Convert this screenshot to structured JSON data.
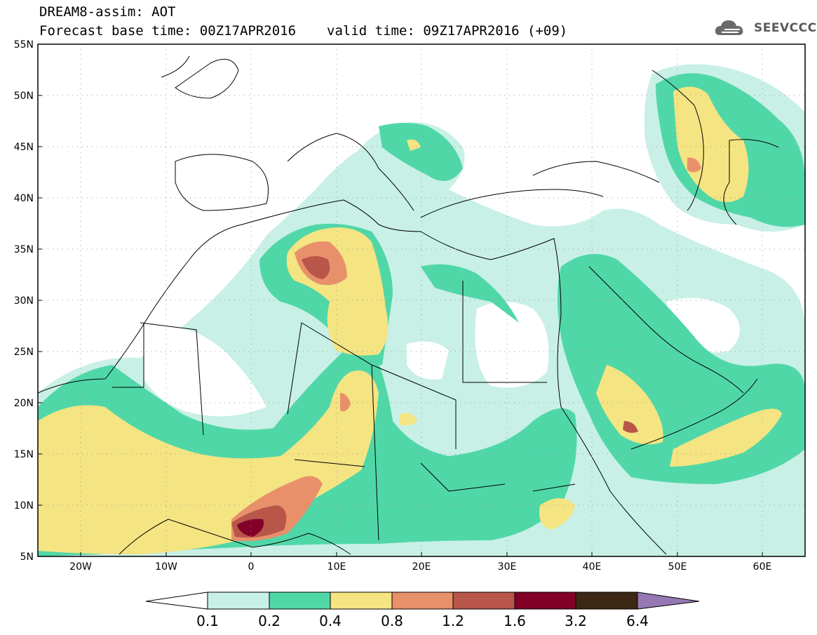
{
  "header": {
    "title": "DREAM8-assim: AOT",
    "base_time": "Forecast base time: 00Z17APR2016",
    "valid_time": "valid time: 09Z17APR2016 (+09)"
  },
  "logo": {
    "text": "SEEVCCC",
    "icon": "cloud-logo-icon"
  },
  "map": {
    "variable": "AOT",
    "projection": "lat-lon",
    "extent": {
      "lon": [
        -25,
        65
      ],
      "lat": [
        5,
        55
      ]
    },
    "lat_labels": [
      "5N",
      "10N",
      "15N",
      "20N",
      "25N",
      "30N",
      "35N",
      "40N",
      "45N",
      "50N",
      "55N"
    ],
    "lon_labels": [
      "20W",
      "10W",
      "0",
      "10E",
      "20E",
      "30E",
      "40E",
      "50E",
      "60E"
    ],
    "grid": "dotted"
  },
  "colorbar": {
    "labels": [
      "0.1",
      "0.2",
      "0.4",
      "0.8",
      "1.2",
      "1.6",
      "3.2",
      "6.4"
    ],
    "colors": [
      "#c8f0e6",
      "#50d7a8",
      "#f5e482",
      "#e8906a",
      "#b8564a",
      "#820028",
      "#3c2814",
      "#9678b4"
    ],
    "below_color": "#ffffff"
  }
}
